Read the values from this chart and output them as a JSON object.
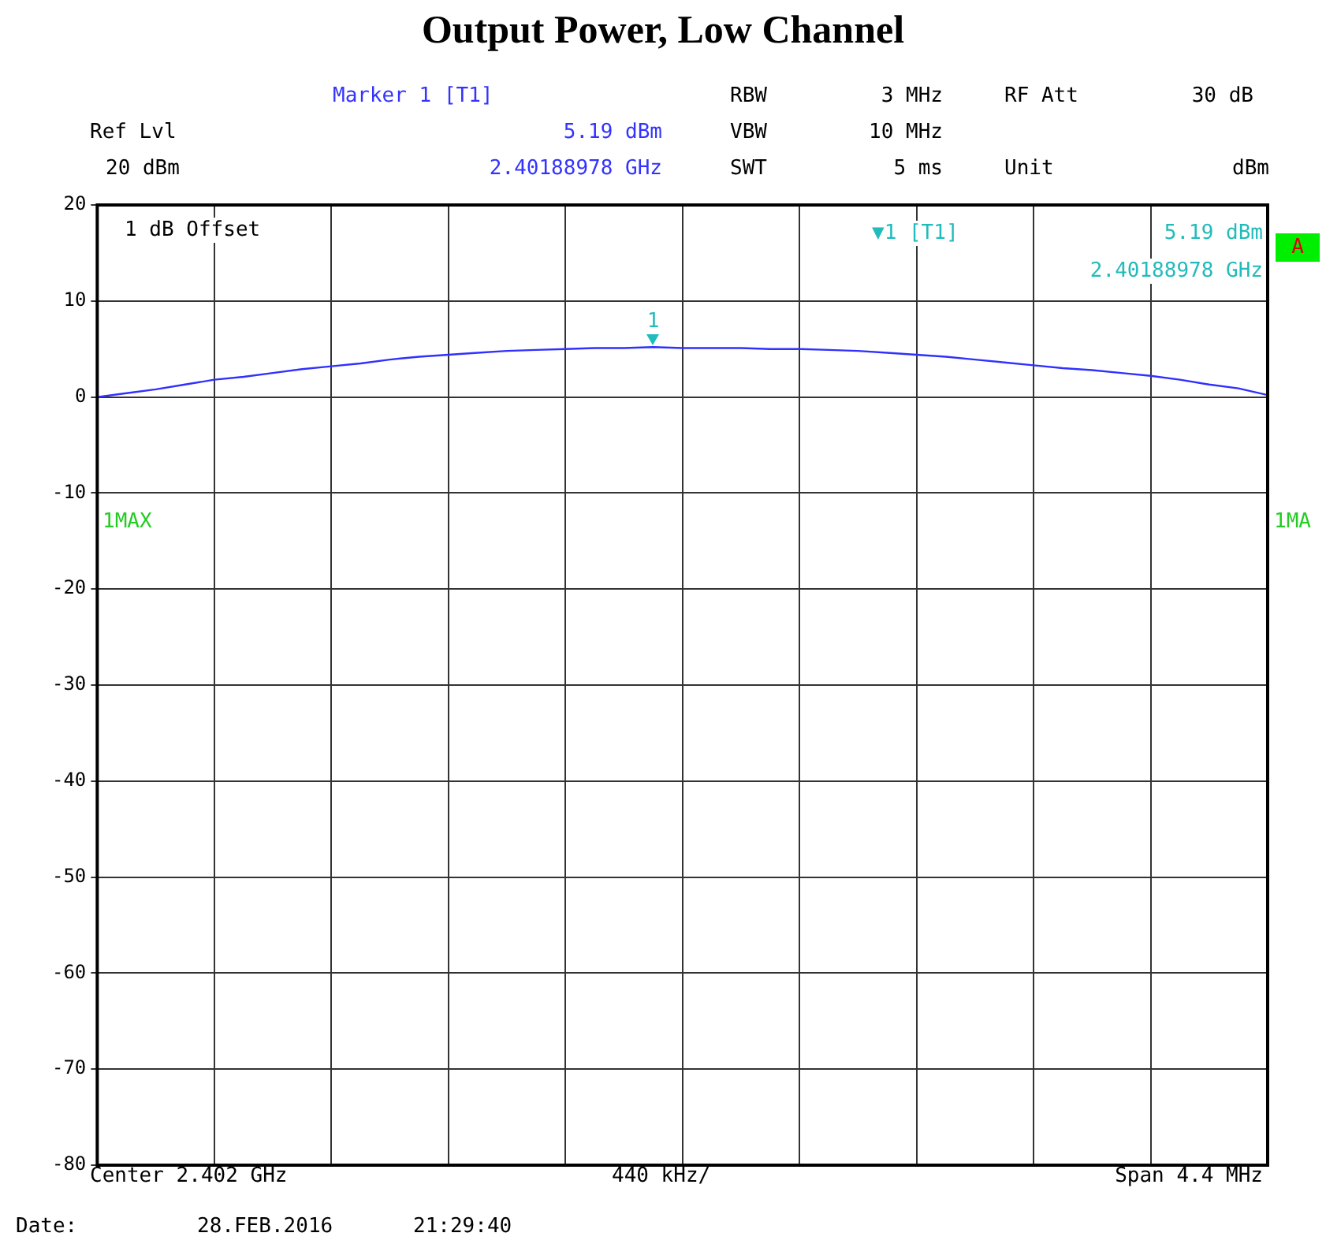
{
  "chart_data": {
    "type": "line",
    "title": "Output Power, Low Channel",
    "categories": [
      null,
      null,
      null,
      null,
      null,
      null,
      null,
      null,
      null,
      null,
      null,
      null,
      null,
      null,
      null,
      null,
      null,
      null,
      null,
      null,
      null,
      null,
      null,
      null,
      null,
      null,
      null,
      null,
      null,
      null,
      null,
      null,
      null,
      null,
      null,
      null,
      null,
      null,
      null,
      null,
      null
    ],
    "series": [
      {
        "color": "#3030ff",
        "values": [
          0.0,
          0.4,
          0.8,
          1.3,
          1.8,
          2.1,
          2.5,
          2.9,
          3.2,
          3.5,
          3.9,
          4.2,
          4.4,
          4.6,
          4.8,
          4.9,
          5.0,
          5.1,
          5.1,
          5.2,
          5.1,
          5.1,
          5.1,
          5.0,
          5.0,
          4.9,
          4.8,
          4.6,
          4.4,
          4.2,
          3.9,
          3.6,
          3.3,
          3.0,
          2.8,
          2.5,
          2.2,
          1.8,
          1.3,
          0.9,
          0.2
        ]
      }
    ],
    "ylim": [
      -80,
      20
    ],
    "yticks": [
      -80,
      -70,
      -60,
      -50,
      -40,
      -30,
      -20,
      -10,
      0,
      10,
      20
    ],
    "grid": true,
    "marker": "none",
    "line_style": "solid",
    "annotations": [
      "Marker 1 [T1]",
      "RBW",
      "3 MHz",
      "RF Att",
      "30 dB",
      "Ref Lvl",
      "5.19 dBm",
      "VBW",
      "10 MHz",
      "20 dBm",
      "2.40188978 GHz",
      "SWT",
      "5 ms",
      "Unit",
      "dBm",
      "1 dB Offset",
      "▼1 [T1]",
      "5.19 dBm",
      "2.40188978 GHz",
      "A",
      "1MAX",
      "1MA",
      "Center 2.402 GHz",
      "440 kHz/",
      "Span 4.4 MHz",
      "Date:",
      "28.FEB.2016",
      "21:29:40",
      {
        "text": "1",
        "y": 5.19
      }
    ]
  }
}
